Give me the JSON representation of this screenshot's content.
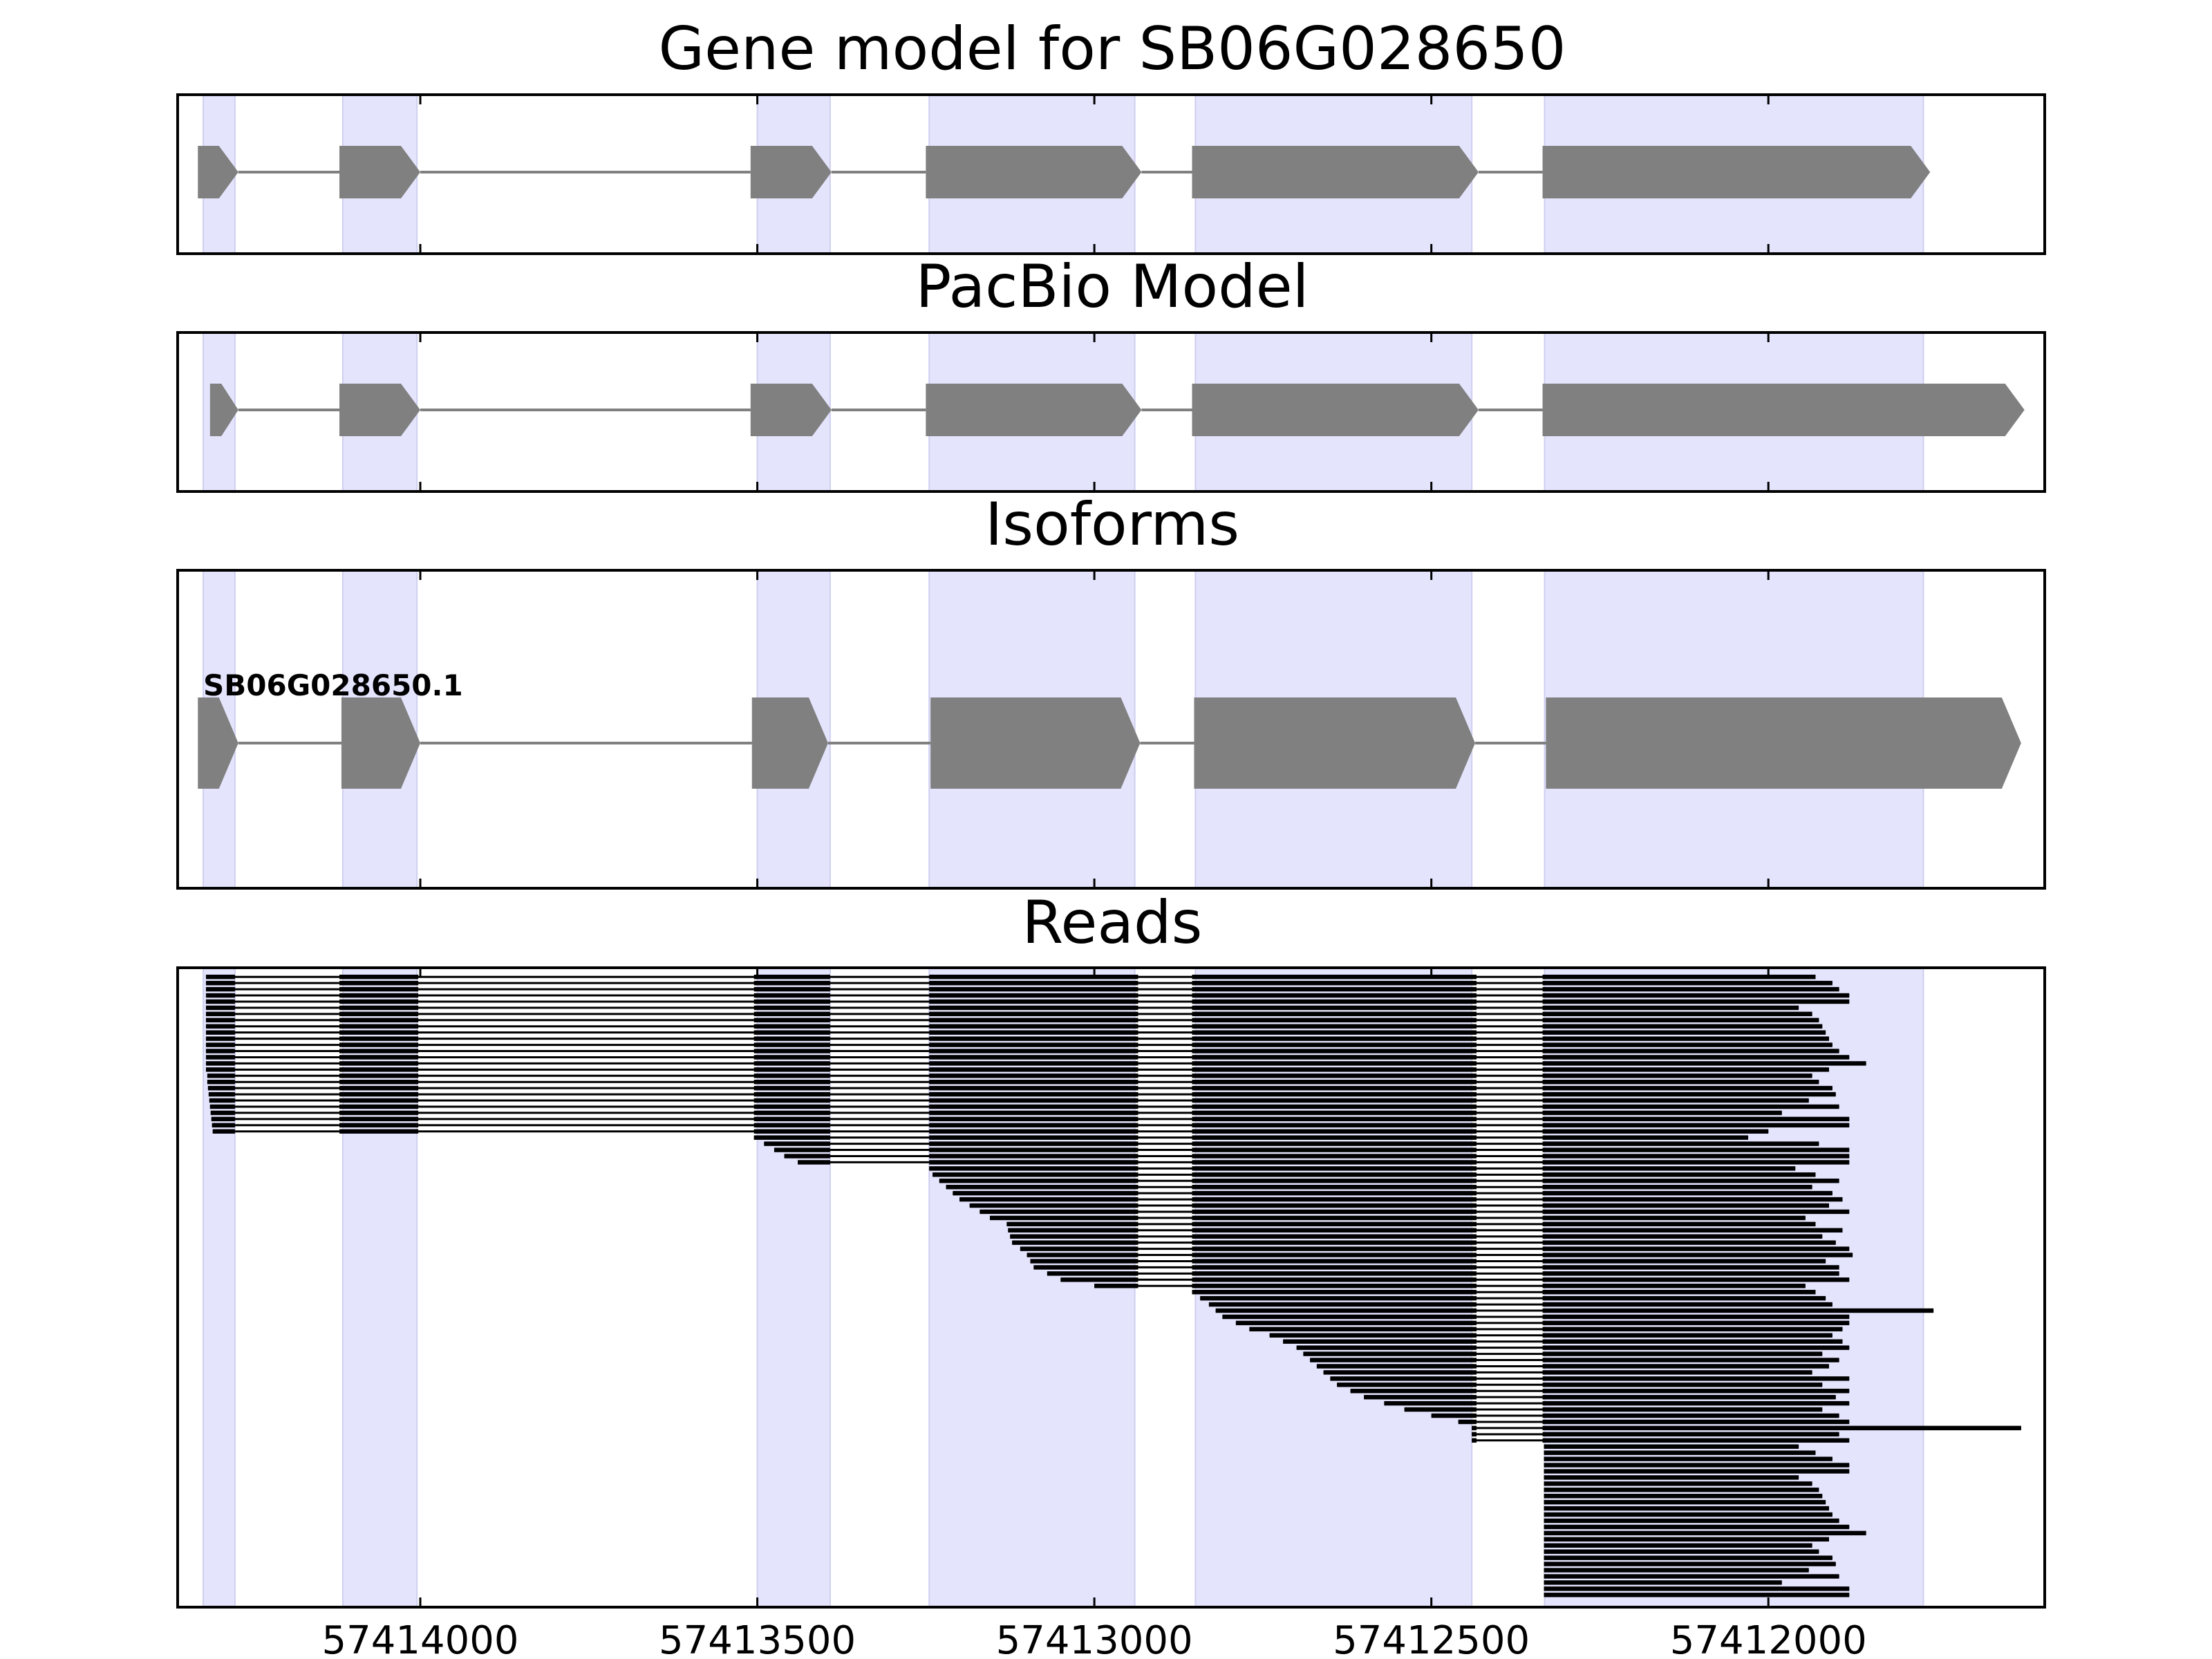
{
  "chart_data": {
    "type": "gene-track",
    "x_axis": {
      "reversed": true,
      "range": [
        57414360,
        57411590
      ],
      "ticks": [
        57414000,
        57413500,
        57413000,
        57412500,
        57412000
      ],
      "tick_labels": [
        "57414000",
        "57413500",
        "57413000",
        "57412500",
        "57412000"
      ],
      "shared_by_all_panels": true
    },
    "colors": {
      "exon": "#808080",
      "intron": "#808080",
      "exon_band": "#e4e4fd",
      "read": "#000000",
      "axes": "#000000"
    },
    "exon_bands": [
      [
        57414322,
        57414275
      ],
      [
        57414115,
        57414005
      ],
      [
        57413500,
        57413392
      ],
      [
        57413245,
        57412940
      ],
      [
        57412850,
        57412440
      ],
      [
        57412332,
        57411770
      ]
    ],
    "panels": [
      {
        "id": "gene_model",
        "title": "Gene model for SB06G028650",
        "type": "gene-model",
        "exons": [
          [
            57414330,
            57414270
          ],
          [
            57414120,
            57414000
          ],
          [
            57413510,
            57413390
          ],
          [
            57413250,
            57412930
          ],
          [
            57412855,
            57412430
          ],
          [
            57412335,
            57411760
          ]
        ]
      },
      {
        "id": "pacbio_model",
        "title": "PacBio Model",
        "type": "gene-model",
        "exons": [
          [
            57414312,
            57414270
          ],
          [
            57414120,
            57414000
          ],
          [
            57413510,
            57413390
          ],
          [
            57413250,
            57412930
          ],
          [
            57412855,
            57412430
          ],
          [
            57412335,
            57411620
          ]
        ]
      },
      {
        "id": "isoforms",
        "title": "Isoforms",
        "type": "gene-model",
        "isoforms": [
          {
            "label": "SB06G028650.1",
            "exons": [
              [
                57414330,
                57414270
              ],
              [
                57414117,
                57414000
              ],
              [
                57413508,
                57413395
              ],
              [
                57413243,
                57412932
              ],
              [
                57412852,
                57412435
              ],
              [
                57412330,
                57411625
              ]
            ]
          }
        ]
      },
      {
        "id": "reads",
        "title": "Reads",
        "type": "reads",
        "read_count": 100,
        "anchor_exon_starts": [
          57414322,
          57414120,
          57413505,
          57413245,
          57412855,
          57412335
        ],
        "intron_gaps": [
          [
            57414275,
            57414120
          ],
          [
            57414003,
            57413505
          ],
          [
            57413392,
            57413245
          ],
          [
            57412935,
            57412855
          ],
          [
            57412433,
            57412335
          ]
        ],
        "read_starts": [
          57414318,
          57414318,
          57414318,
          57414318,
          57414318,
          57414318,
          57414318,
          57414318,
          57414318,
          57414318,
          57414318,
          57414318,
          57414318,
          57414318,
          57414318,
          57414318,
          57414316,
          57414316,
          57414315,
          57414314,
          57414313,
          57414312,
          57414311,
          57414310,
          57414309,
          57414308,
          57413505,
          57413490,
          57413475,
          57413460,
          57413440,
          57413245,
          57413240,
          57413230,
          57413220,
          57413210,
          57413200,
          57413185,
          57413170,
          57413155,
          57413130,
          57413128,
          57413125,
          57413122,
          57413110,
          57413100,
          57413095,
          57413090,
          57413070,
          57413050,
          57413000,
          57412855,
          57412843,
          57412830,
          57412820,
          57412810,
          57412790,
          57412770,
          57412740,
          57412720,
          57412700,
          57412690,
          57412680,
          57412670,
          57412660,
          57412650,
          57412640,
          57412620,
          57412600,
          57412570,
          57412540,
          57412500,
          57412460,
          57412440,
          57412440,
          57412440,
          57412333,
          57412333,
          57412333,
          57412333,
          57412333,
          57412333,
          57412333,
          57412333,
          57412333,
          57412333,
          57412333,
          57412333,
          57412333,
          57412333,
          57412333,
          57412333,
          57412333,
          57412333,
          57412333,
          57412333,
          57412333,
          57412333,
          57412333,
          57412333,
          57412333
        ],
        "read_ends": [
          57411930,
          57411905,
          57411895,
          57411880,
          57411880,
          57411955,
          57411935,
          57411925,
          57411920,
          57411915,
          57411910,
          57411905,
          57411895,
          57411880,
          57411855,
          57411910,
          57411935,
          57411925,
          57411905,
          57411900,
          57411940,
          57411895,
          57411980,
          57411880,
          57411880,
          57412000,
          57412030,
          57411925,
          57411880,
          57411880,
          57411880,
          57411960,
          57411930,
          57411895,
          57411935,
          57411905,
          57411890,
          57411910,
          57411880,
          57411945,
          57411930,
          57411890,
          57411920,
          57411900,
          57411880,
          57411875,
          57411915,
          57411895,
          57411895,
          57411880,
          57411945,
          57411930,
          57411915,
          57411905,
          57411755,
          57411880,
          57411880,
          57411890,
          57411905,
          57411890,
          57411880,
          57411920,
          57411895,
          57411910,
          57411935,
          57411880,
          57411920,
          57411880,
          57411900,
          57411880,
          57411920,
          57411895,
          57411880,
          57411625,
          57411895,
          57411880,
          57411955,
          57411930,
          57411905,
          57411880,
          57411880,
          57411955,
          57411935,
          57411925,
          57411920,
          57411915,
          57411910,
          57411905,
          57411895,
          57411880,
          57411855,
          57411910,
          57411935,
          57411925,
          57411905,
          57411900,
          57411940,
          57411895,
          57411980,
          57411880,
          57411880
        ]
      }
    ]
  }
}
